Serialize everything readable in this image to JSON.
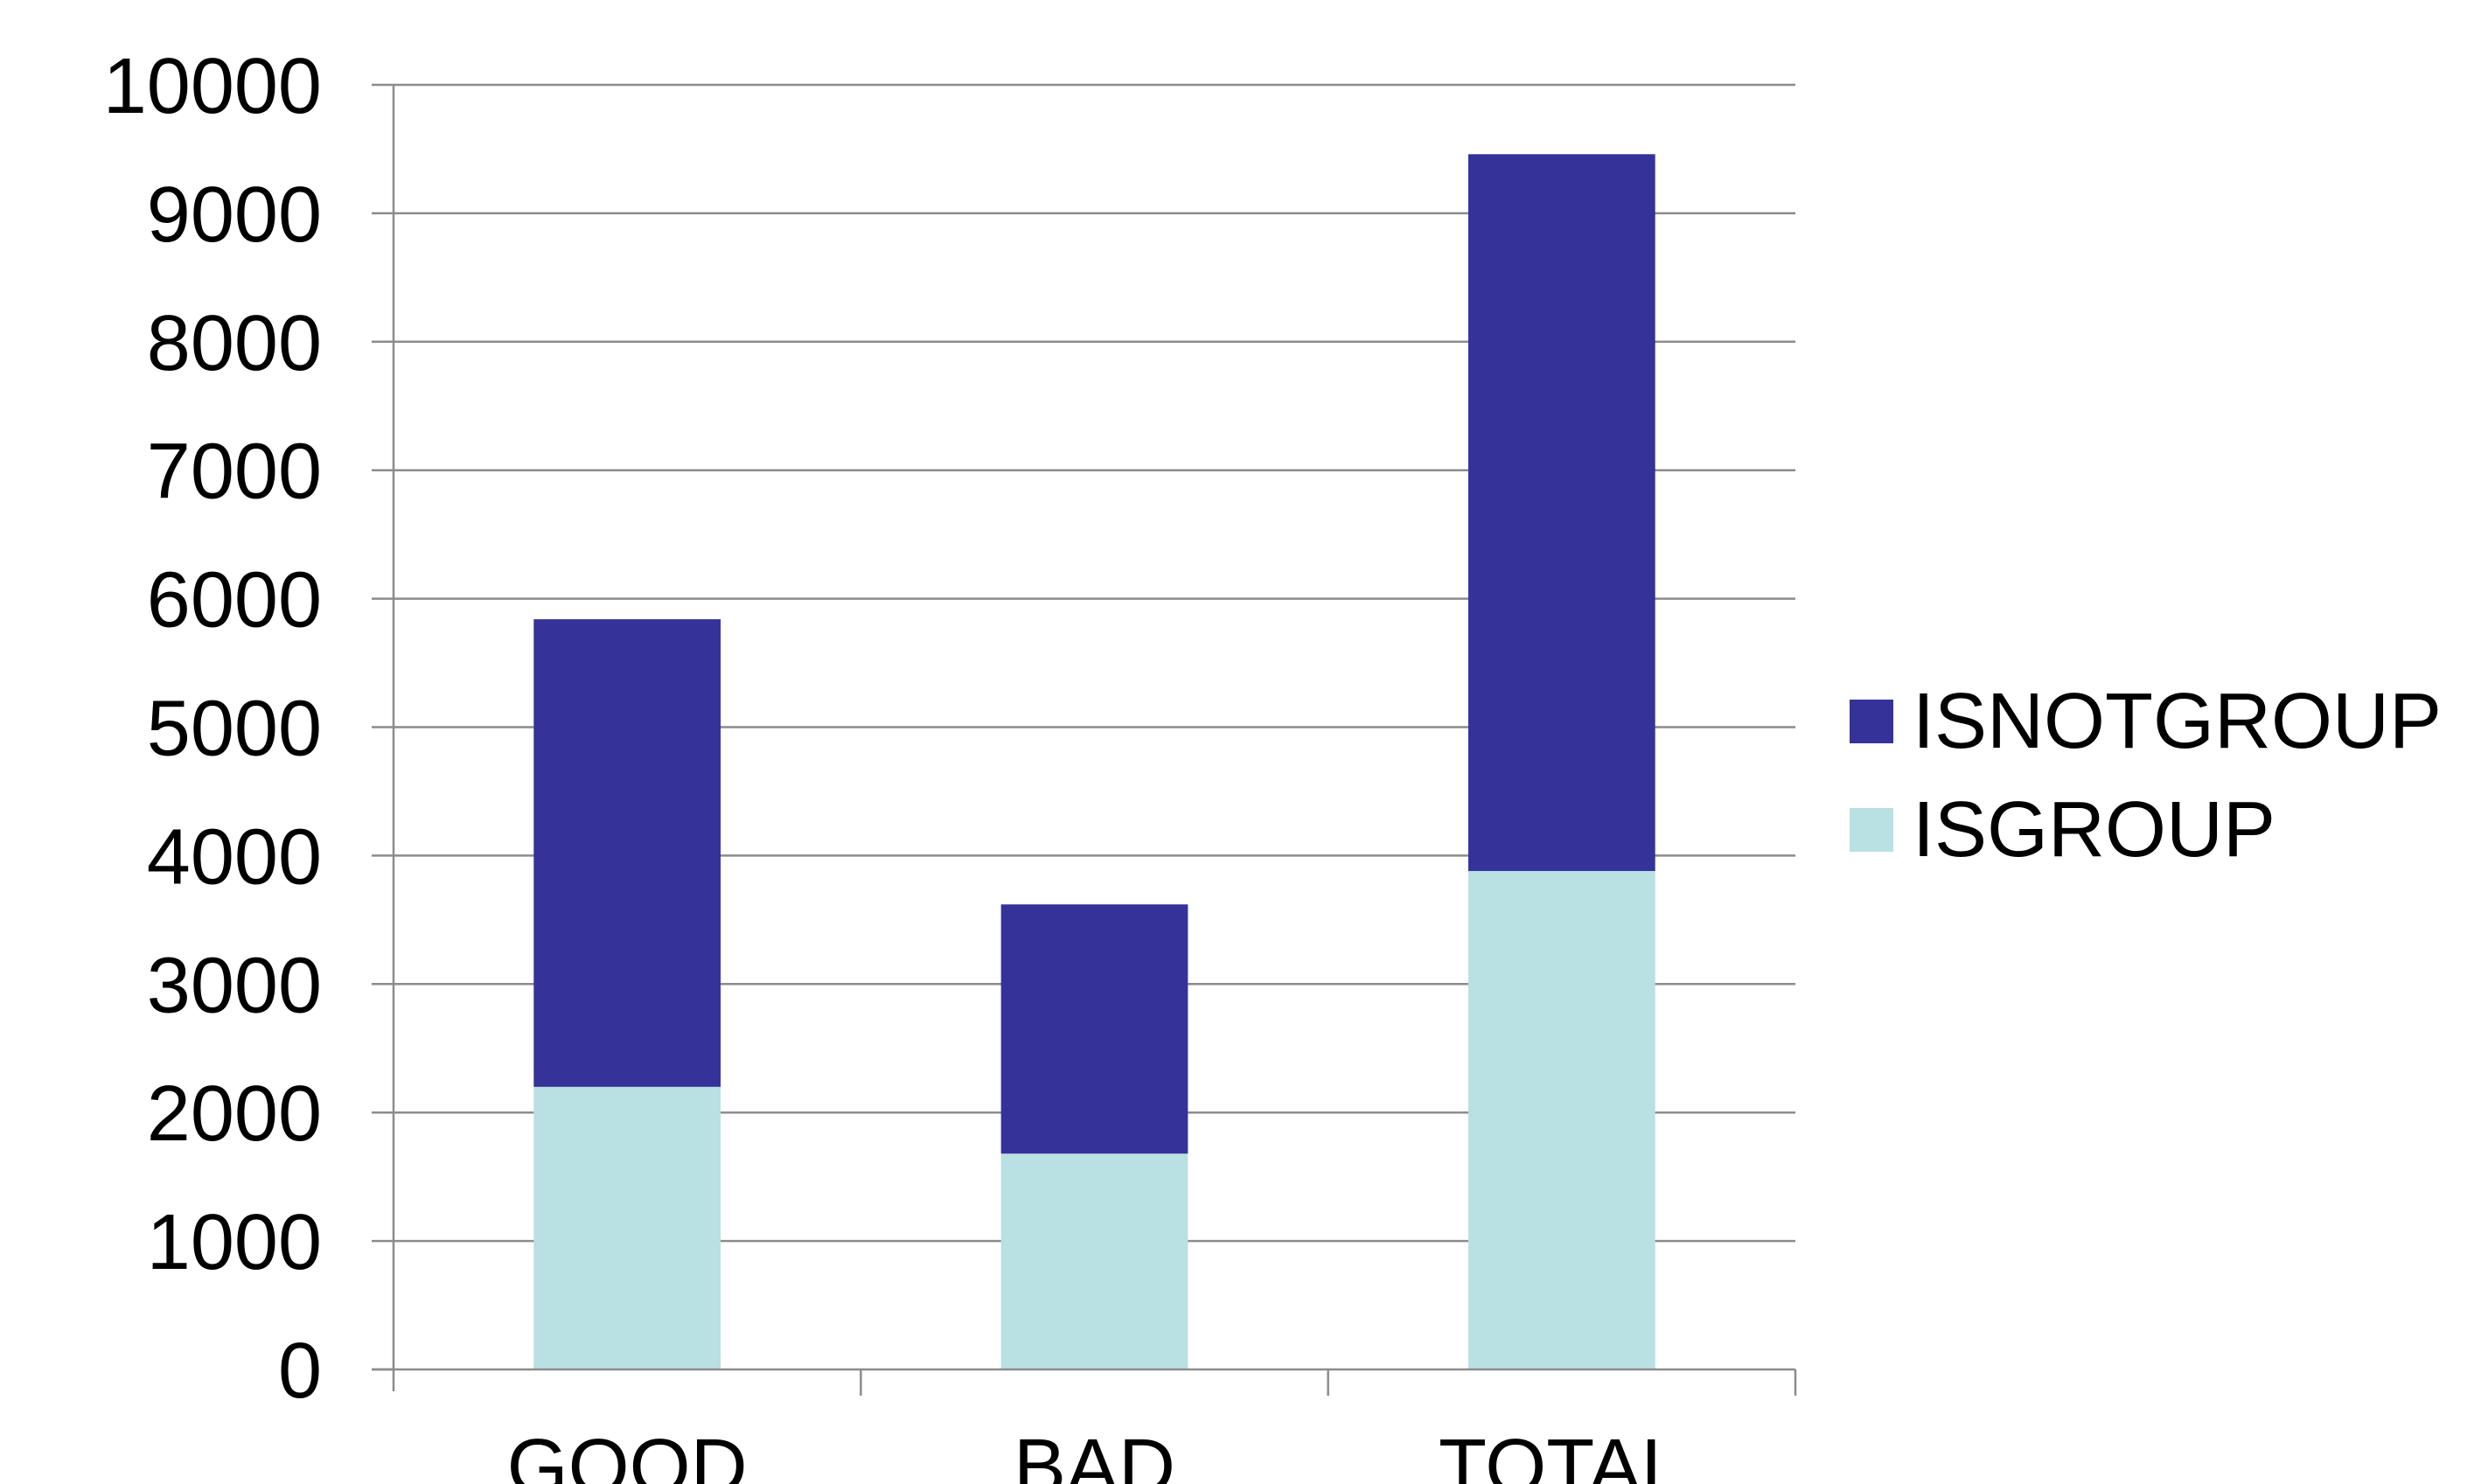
{
  "chart_data": {
    "type": "bar",
    "stacked": true,
    "categories": [
      "GOOD",
      "BAD",
      "TOTAL"
    ],
    "series": [
      {
        "name": "ISGROUP",
        "values": [
          2200,
          1680,
          3880
        ],
        "color": "#b9e0e2"
      },
      {
        "name": "ISNOTGROUP",
        "values": [
          3640,
          1940,
          5580
        ],
        "color": "#353399"
      }
    ],
    "legend_order": [
      "ISNOTGROUP",
      "ISGROUP"
    ],
    "legend_position": "right",
    "ylim": [
      0,
      10000
    ],
    "yticks": [
      "0",
      "1000",
      "2000",
      "3000",
      "4000",
      "5000",
      "6000",
      "7000",
      "8000",
      "9000",
      "10000"
    ],
    "grid": true,
    "title": "",
    "xlabel": "",
    "ylabel": ""
  }
}
